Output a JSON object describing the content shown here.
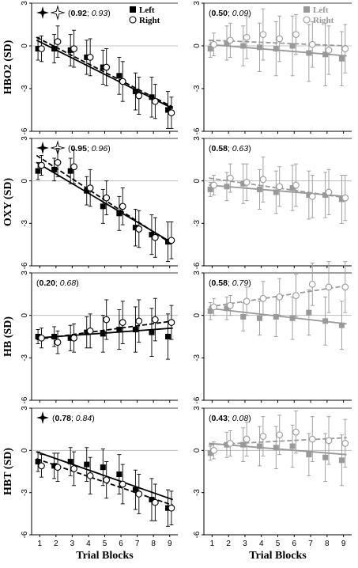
{
  "figure": {
    "x_label": "Trial Blocks",
    "legend": {
      "left": "Left",
      "right": "Right"
    },
    "colors": {
      "dark": "#000000",
      "light": "#999999"
    }
  },
  "chart_data": [
    {
      "type": "scatter",
      "row": 0,
      "col": 0,
      "ylabel": "HBO2 (SD)",
      "color": "#000000",
      "star": true,
      "double_star": true,
      "annotation": {
        "bold": "0.92",
        "italic": "0.93"
      },
      "xlim": [
        0.5,
        9.5
      ],
      "ylim": [
        -6,
        3
      ],
      "yticks": [
        -6,
        -3,
        0,
        3
      ],
      "x": [
        1,
        2,
        3,
        4,
        5,
        6,
        7,
        8,
        9
      ],
      "series": [
        {
          "name": "Left",
          "marker": "square",
          "values": [
            -0.2,
            -0.2,
            -0.3,
            -0.8,
            -1.5,
            -2.1,
            -3.2,
            -3.6,
            -4.5
          ],
          "err": [
            0.8,
            1.0,
            1.1,
            1.2,
            1.2,
            1.3,
            1.3,
            1.4,
            1.3
          ],
          "fit": [
            0.4,
            -4.4
          ]
        },
        {
          "name": "Right",
          "marker": "circle",
          "values": [
            -0.2,
            0.3,
            -0.2,
            -0.8,
            -1.5,
            -2.5,
            -3.5,
            -3.9,
            -4.7
          ],
          "err": [
            0.9,
            1.1,
            1.3,
            1.3,
            1.3,
            1.4,
            1.3,
            1.2,
            1.1
          ],
          "fit": [
            0.6,
            -4.3
          ]
        }
      ]
    },
    {
      "type": "scatter",
      "row": 0,
      "col": 1,
      "ylabel": "",
      "color": "#999999",
      "star": false,
      "double_star": false,
      "annotation": {
        "bold": "0.50",
        "italic": "0.09"
      },
      "xlim": [
        0.5,
        9.5
      ],
      "ylim": [
        -6,
        3
      ],
      "yticks": [
        -6,
        -3,
        0,
        3
      ],
      "x": [
        1,
        2,
        3,
        4,
        5,
        6,
        7,
        8,
        9
      ],
      "series": [
        {
          "name": "Left",
          "marker": "square",
          "values": [
            -0.2,
            0.2,
            0.0,
            -0.1,
            -0.2,
            0.0,
            -0.5,
            -0.6,
            -0.9
          ],
          "err": [
            0.6,
            1.2,
            1.4,
            1.7,
            1.9,
            2.1,
            2.0,
            2.2,
            1.9
          ],
          "fit": [
            0.1,
            -0.7
          ]
        },
        {
          "name": "Right",
          "marker": "circle",
          "values": [
            0.1,
            0.4,
            0.6,
            0.8,
            0.5,
            0.8,
            0.1,
            -0.3,
            -0.2
          ],
          "err": [
            0.8,
            1.2,
            1.5,
            1.8,
            1.6,
            1.4,
            1.6,
            1.7,
            1.7
          ],
          "fit": [
            0.4,
            0.0
          ]
        }
      ]
    },
    {
      "type": "scatter",
      "row": 1,
      "col": 0,
      "ylabel": "OXY (SD)",
      "color": "#000000",
      "star": true,
      "double_star": true,
      "annotation": {
        "bold": "0.95",
        "italic": "0.96"
      },
      "xlim": [
        0.5,
        9.5
      ],
      "ylim": [
        -6,
        3
      ],
      "yticks": [
        -6,
        -3,
        0,
        3
      ],
      "x": [
        1,
        2,
        3,
        4,
        5,
        6,
        7,
        8,
        9
      ],
      "series": [
        {
          "name": "Left",
          "marker": "square",
          "values": [
            0.7,
            0.8,
            0.7,
            -0.7,
            -1.8,
            -2.3,
            -3.3,
            -3.8,
            -4.3
          ],
          "err": [
            0.6,
            0.8,
            0.9,
            1.0,
            1.2,
            1.2,
            1.3,
            1.4,
            1.4
          ],
          "fit": [
            1.3,
            -4.4
          ]
        },
        {
          "name": "Right",
          "marker": "circle",
          "values": [
            1.1,
            1.3,
            1.0,
            -0.5,
            -1.2,
            -1.8,
            -3.4,
            -4.0,
            -4.2
          ],
          "err": [
            0.7,
            1.0,
            1.2,
            1.3,
            1.2,
            1.3,
            1.3,
            1.4,
            1.3
          ],
          "fit": [
            1.8,
            -4.5
          ]
        }
      ]
    },
    {
      "type": "scatter",
      "row": 1,
      "col": 1,
      "ylabel": "",
      "color": "#999999",
      "star": false,
      "double_star": false,
      "annotation": {
        "bold": "0.58",
        "italic": "0.63"
      },
      "xlim": [
        0.5,
        9.5
      ],
      "ylim": [
        -6,
        3
      ],
      "yticks": [
        -6,
        -3,
        0,
        3
      ],
      "x": [
        1,
        2,
        3,
        4,
        5,
        6,
        7,
        8,
        9
      ],
      "series": [
        {
          "name": "Left",
          "marker": "square",
          "values": [
            -0.6,
            -0.4,
            -0.2,
            -0.6,
            -0.8,
            -0.5,
            -1.0,
            -1.0,
            -1.3
          ],
          "err": [
            0.5,
            1.0,
            1.4,
            1.4,
            1.5,
            1.6,
            1.7,
            1.6,
            1.7
          ],
          "fit": [
            -0.3,
            -1.1
          ]
        },
        {
          "name": "Right",
          "marker": "circle",
          "values": [
            -0.3,
            0.2,
            -0.1,
            0.1,
            -0.4,
            -0.3,
            -1.1,
            -0.8,
            -1.2
          ],
          "err": [
            0.7,
            1.0,
            1.3,
            1.6,
            1.4,
            1.5,
            1.5,
            1.6,
            1.6
          ],
          "fit": [
            0.2,
            -1.2
          ]
        }
      ]
    },
    {
      "type": "scatter",
      "row": 2,
      "col": 0,
      "ylabel": "HB (SD)",
      "color": "#000000",
      "star": false,
      "double_star": false,
      "annotation": {
        "bold": "0.20",
        "italic": "0.68"
      },
      "xlim": [
        0.5,
        9.5
      ],
      "ylim": [
        -6,
        3
      ],
      "yticks": [
        -6,
        -3,
        0,
        3
      ],
      "x": [
        1,
        2,
        3,
        4,
        5,
        6,
        7,
        8,
        9
      ],
      "series": [
        {
          "name": "Left",
          "marker": "square",
          "values": [
            -1.5,
            -1.5,
            -1.6,
            -1.2,
            -1.3,
            -1.0,
            -1.0,
            -1.2,
            -1.5
          ],
          "err": [
            0.5,
            0.7,
            0.9,
            1.1,
            1.3,
            1.4,
            1.6,
            1.7,
            1.6
          ],
          "fit": [
            -1.6,
            -0.9
          ]
        },
        {
          "name": "Right",
          "marker": "circle",
          "values": [
            -1.6,
            -1.9,
            -1.6,
            -1.1,
            -0.3,
            -0.5,
            -0.4,
            -0.3,
            -0.5
          ],
          "err": [
            0.7,
            0.8,
            1.0,
            1.2,
            1.4,
            1.5,
            1.5,
            1.5,
            1.2
          ],
          "fit": [
            -1.7,
            -0.4
          ]
        }
      ]
    },
    {
      "type": "scatter",
      "row": 2,
      "col": 1,
      "ylabel": "",
      "color": "#999999",
      "star": false,
      "double_star": false,
      "annotation": {
        "bold": "0.58",
        "italic": "0.79"
      },
      "xlim": [
        0.5,
        9.5
      ],
      "ylim": [
        -6,
        3
      ],
      "yticks": [
        -6,
        -3,
        0,
        3
      ],
      "x": [
        1,
        2,
        3,
        4,
        5,
        6,
        7,
        8,
        9
      ],
      "series": [
        {
          "name": "Left",
          "marker": "square",
          "values": [
            0.3,
            0.5,
            -0.1,
            -0.2,
            -0.1,
            -0.2,
            0.2,
            -0.4,
            -0.7
          ],
          "err": [
            0.6,
            0.8,
            1.0,
            1.2,
            1.4,
            1.5,
            1.6,
            1.7,
            1.7
          ],
          "fit": [
            0.5,
            -0.6
          ]
        },
        {
          "name": "Right",
          "marker": "circle",
          "values": [
            0.6,
            0.7,
            1.0,
            1.2,
            1.3,
            1.4,
            2.2,
            2.0,
            2.0
          ],
          "err": [
            0.6,
            0.7,
            1.0,
            1.2,
            1.3,
            1.5,
            1.5,
            1.8,
            1.8
          ],
          "fit": [
            0.6,
            2.1
          ]
        }
      ]
    },
    {
      "type": "scatter",
      "row": 3,
      "col": 0,
      "ylabel": "HBT (SD)",
      "color": "#000000",
      "star": true,
      "double_star": false,
      "annotation": {
        "bold": "0.78",
        "italic": "0.84"
      },
      "xlim": [
        0.5,
        9.5
      ],
      "ylim": [
        -6,
        3
      ],
      "yticks": [
        -6,
        -3,
        0,
        3
      ],
      "x": [
        1,
        2,
        3,
        4,
        5,
        6,
        7,
        8,
        9
      ],
      "series": [
        {
          "name": "Left",
          "marker": "square",
          "values": [
            -0.8,
            -1.1,
            -0.8,
            -1.0,
            -1.2,
            -1.7,
            -2.8,
            -3.5,
            -4.1
          ],
          "err": [
            0.7,
            0.9,
            1.0,
            1.2,
            1.3,
            1.4,
            1.4,
            1.5,
            1.3
          ],
          "fit": [
            -0.1,
            -3.5
          ]
        },
        {
          "name": "Right",
          "marker": "circle",
          "values": [
            -1.1,
            -1.2,
            -1.3,
            -1.8,
            -2.1,
            -2.4,
            -3.1,
            -3.7,
            -4.1
          ],
          "err": [
            0.8,
            1.0,
            1.2,
            1.3,
            1.3,
            1.4,
            1.4,
            1.3,
            1.2
          ],
          "fit": [
            -0.6,
            -3.9
          ]
        }
      ]
    },
    {
      "type": "scatter",
      "row": 3,
      "col": 1,
      "ylabel": "",
      "color": "#999999",
      "star": false,
      "double_star": false,
      "annotation": {
        "bold": "0.43",
        "italic": "0.08"
      },
      "xlim": [
        0.5,
        9.5
      ],
      "ylim": [
        -6,
        3
      ],
      "yticks": [
        -6,
        -3,
        0,
        3
      ],
      "x": [
        1,
        2,
        3,
        4,
        5,
        6,
        7,
        8,
        9
      ],
      "series": [
        {
          "name": "Left",
          "marker": "square",
          "values": [
            -0.2,
            0.4,
            0.4,
            0.3,
            0.2,
            0.3,
            -0.3,
            -0.5,
            -0.7
          ],
          "err": [
            0.5,
            0.9,
            1.2,
            1.4,
            1.5,
            1.5,
            1.5,
            1.7,
            1.8
          ],
          "fit": [
            0.5,
            -0.3
          ]
        },
        {
          "name": "Right",
          "marker": "circle",
          "values": [
            0.0,
            0.5,
            0.8,
            1.0,
            1.1,
            1.3,
            0.8,
            0.7,
            0.5
          ],
          "err": [
            0.6,
            0.9,
            1.2,
            1.4,
            1.4,
            1.5,
            1.6,
            1.7,
            1.7
          ],
          "fit": [
            0.4,
            0.9
          ]
        }
      ]
    }
  ]
}
